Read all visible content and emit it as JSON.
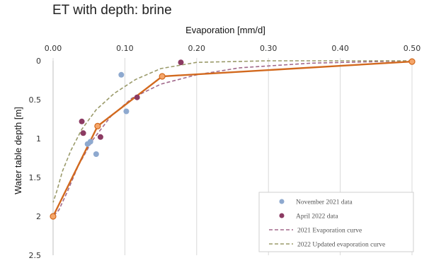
{
  "chart_data": {
    "type": "scatter",
    "title": "ET with depth: brine",
    "xlabel": "Evaporation  [mm/d]",
    "ylabel": "Water table  depth [m]",
    "xlim": [
      0,
      0.5
    ],
    "ylim": [
      0,
      2.5
    ],
    "y_inverted": true,
    "x_axis_position": "top",
    "grid": "vertical",
    "x_ticks": [
      "0.00",
      "0.10",
      "0.20",
      "0.30",
      "0.40",
      "0.50"
    ],
    "y_ticks": [
      "0",
      "0.5",
      "1",
      "1.5",
      "2",
      "2.5"
    ],
    "legend_position": "bottom-right",
    "series": [
      {
        "name": "November 2021 data",
        "kind": "points",
        "color": "#8ea9cf",
        "points": [
          [
            0.095,
            0.18
          ],
          [
            0.102,
            0.65
          ],
          [
            0.048,
            1.07
          ],
          [
            0.052,
            1.04
          ],
          [
            0.06,
            1.2
          ]
        ]
      },
      {
        "name": "April 2022 data",
        "kind": "points",
        "color": "#8b3a62",
        "points": [
          [
            0.178,
            0.02
          ],
          [
            0.117,
            0.47
          ],
          [
            0.04,
            0.78
          ],
          [
            0.042,
            0.93
          ],
          [
            0.066,
            0.98
          ]
        ]
      },
      {
        "name": "2021 Evaporation curve",
        "kind": "dashed-line",
        "color": "#a26a8c",
        "points": [
          [
            0.5,
            0.0
          ],
          [
            0.36,
            0.03
          ],
          [
            0.26,
            0.09
          ],
          [
            0.2,
            0.18
          ],
          [
            0.15,
            0.3
          ],
          [
            0.11,
            0.48
          ],
          [
            0.08,
            0.72
          ],
          [
            0.055,
            1.02
          ],
          [
            0.035,
            1.35
          ],
          [
            0.02,
            1.68
          ],
          [
            0.008,
            1.92
          ],
          [
            0.0,
            2.0
          ]
        ]
      },
      {
        "name": "2022 Updated evaporation curve",
        "kind": "dashed-line",
        "color": "#9a9a6a",
        "points": [
          [
            0.5,
            0.0
          ],
          [
            0.3,
            0.0
          ],
          [
            0.2,
            0.02
          ],
          [
            0.15,
            0.1
          ],
          [
            0.115,
            0.24
          ],
          [
            0.085,
            0.42
          ],
          [
            0.06,
            0.63
          ],
          [
            0.04,
            0.88
          ],
          [
            0.025,
            1.15
          ],
          [
            0.013,
            1.42
          ],
          [
            0.005,
            1.68
          ],
          [
            0.0,
            1.82
          ]
        ]
      },
      {
        "kind": "solid-line",
        "color": "#d2691e",
        "points": [
          [
            0.0,
            2.0
          ],
          [
            0.062,
            0.84
          ],
          [
            0.152,
            0.2
          ],
          [
            0.5,
            0.01
          ]
        ]
      }
    ]
  }
}
